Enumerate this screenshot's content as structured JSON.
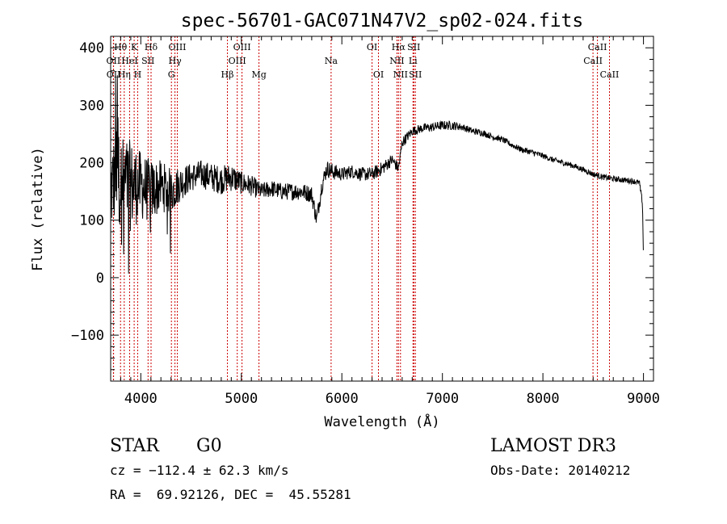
{
  "chart_data": {
    "type": "line",
    "title": "spec-56701-GAC071N47V2_sp02-024.fits",
    "xlabel": "Wavelength (Å)",
    "ylabel": "Flux (relative)",
    "xlim": [
      3700,
      9100
    ],
    "ylim": [
      -180,
      420
    ],
    "xticks": [
      4000,
      5000,
      6000,
      7000,
      8000,
      9000
    ],
    "xtick_labels": [
      "4000",
      "5000",
      "6000",
      "7000",
      "8000",
      "9000"
    ],
    "yticks": [
      -100,
      0,
      100,
      200,
      300,
      400
    ],
    "ytick_labels": [
      "−100",
      "0",
      "100",
      "200",
      "300",
      "400"
    ],
    "line_color": "#000000",
    "marker_color": "#cc0000",
    "spectrum_anchors": {
      "wavelength": [
        3700,
        3750,
        3800,
        3900,
        4000,
        4100,
        4200,
        4300,
        4400,
        4500,
        4600,
        4700,
        4800,
        4900,
        5000,
        5100,
        5200,
        5300,
        5400,
        5500,
        5600,
        5700,
        5750,
        5800,
        5850,
        5900,
        6000,
        6100,
        6200,
        6300,
        6400,
        6500,
        6563,
        6600,
        6700,
        6800,
        6900,
        7000,
        7100,
        7200,
        7300,
        7400,
        7500,
        7600,
        7700,
        7800,
        7900,
        8000,
        8100,
        8200,
        8300,
        8400,
        8500,
        8600,
        8700,
        8800,
        8900,
        8960,
        8990,
        9000
      ],
      "flux": [
        150,
        180,
        170,
        160,
        160,
        150,
        160,
        150,
        165,
        175,
        180,
        175,
        170,
        175,
        165,
        160,
        150,
        155,
        150,
        150,
        150,
        145,
        100,
        160,
        190,
        185,
        180,
        185,
        180,
        180,
        190,
        205,
        190,
        235,
        255,
        260,
        262,
        265,
        265,
        262,
        255,
        252,
        245,
        240,
        230,
        222,
        218,
        212,
        205,
        200,
        195,
        188,
        180,
        175,
        172,
        170,
        168,
        165,
        130,
        40
      ],
      "noise": [
        80,
        80,
        80,
        80,
        60,
        55,
        45,
        40,
        30,
        25,
        25,
        25,
        25,
        25,
        20,
        18,
        15,
        15,
        15,
        15,
        15,
        15,
        15,
        15,
        15,
        15,
        12,
        12,
        12,
        12,
        12,
        10,
        10,
        10,
        8,
        8,
        8,
        8,
        8,
        6,
        6,
        6,
        5,
        5,
        5,
        5,
        5,
        5,
        5,
        5,
        5,
        5,
        5,
        5,
        5,
        5,
        5,
        5,
        5,
        5
      ]
    },
    "lines": [
      {
        "label": "Hθ",
        "wavelength": 3798,
        "row": 0
      },
      {
        "label": "K",
        "wavelength": 3934,
        "row": 0
      },
      {
        "label": "Hδ",
        "wavelength": 4102,
        "row": 0
      },
      {
        "label": "OIII",
        "wavelength": 4363,
        "row": 0
      },
      {
        "label": "OIII",
        "wavelength": 5007,
        "row": 0
      },
      {
        "label": "OI",
        "wavelength": 6300,
        "row": 0
      },
      {
        "label": "Hα",
        "wavelength": 6563,
        "row": 0
      },
      {
        "label": "SII",
        "wavelength": 6716,
        "row": 0
      },
      {
        "label": "CaII",
        "wavelength": 8542,
        "row": 0
      },
      {
        "label": "OII",
        "wavelength": 3727,
        "row": 1
      },
      {
        "label": "HeI",
        "wavelength": 3889,
        "row": 1
      },
      {
        "label": "SII",
        "wavelength": 4072,
        "row": 1
      },
      {
        "label": "Hγ",
        "wavelength": 4340,
        "row": 1
      },
      {
        "label": "OIII",
        "wavelength": 4959,
        "row": 1
      },
      {
        "label": "Na",
        "wavelength": 5893,
        "row": 1
      },
      {
        "label": "NII",
        "wavelength": 6548,
        "row": 1
      },
      {
        "label": "Li",
        "wavelength": 6708,
        "row": 1
      },
      {
        "label": "CaII",
        "wavelength": 8498,
        "row": 1
      },
      {
        "label": "OII",
        "wavelength": 3729,
        "row": 2
      },
      {
        "label": "Hη",
        "wavelength": 3835,
        "row": 2
      },
      {
        "label": "H",
        "wavelength": 3968,
        "row": 2
      },
      {
        "label": "G",
        "wavelength": 4304,
        "row": 2
      },
      {
        "label": "Hβ",
        "wavelength": 4861,
        "row": 2
      },
      {
        "label": "Mg",
        "wavelength": 5175,
        "row": 2
      },
      {
        "label": "OI",
        "wavelength": 6364,
        "row": 2
      },
      {
        "label": "NII",
        "wavelength": 6583,
        "row": 2
      },
      {
        "label": "SII",
        "wavelength": 6731,
        "row": 2
      },
      {
        "label": "CaII",
        "wavelength": 8662,
        "row": 2
      }
    ]
  },
  "info": {
    "class": "STAR",
    "subclass": "G0",
    "survey": "LAMOST DR3",
    "cz": "cz = −112.4 ± 62.3 km/s",
    "obs_date": "Obs-Date: 20140212",
    "radec": "RA =  69.92126, DEC =  45.55281"
  }
}
